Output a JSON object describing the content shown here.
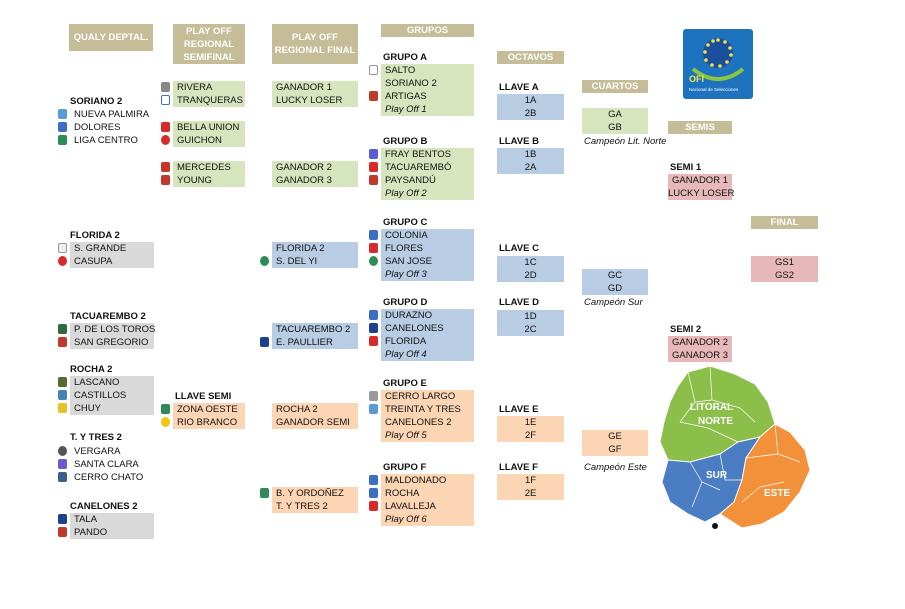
{
  "headers": {
    "qualy": "QUALY DEPTAL.",
    "playoff_semi": "PLAY OFF REGIONAL SEMIFINAL",
    "playoff_final": "PLAY OFF REGIONAL FINAL",
    "grupos": "GRUPOS",
    "octavos": "OCTAVOS",
    "cuartos": "CUARTOS",
    "semis": "SEMIS",
    "final": "FINAL"
  },
  "qualy": {
    "soriano": {
      "title": "SORIANO 2",
      "teams": [
        "NUEVA PALMIRA",
        "DOLORES",
        "LIGA CENTRO"
      ]
    },
    "florida": {
      "title": "FLORIDA 2",
      "teams": [
        "S. GRANDE",
        "CASUPA"
      ]
    },
    "tacuarembo": {
      "title": "TACUAREMBO 2",
      "teams": [
        "P. DE LOS TOROS",
        "SAN GREGORIO"
      ]
    },
    "rocha": {
      "title": "ROCHA 2",
      "teams": [
        "LASCANO",
        "CASTILLOS",
        "CHUY"
      ]
    },
    "tytres": {
      "title": "T. Y TRES 2",
      "teams": [
        "VERGARA",
        "SANTA CLARA",
        "CERRO CHATO"
      ]
    },
    "canelones": {
      "title": "CANELONES 2",
      "teams": [
        "TALA",
        "PANDO"
      ]
    }
  },
  "semi": {
    "m1": [
      "RIVERA",
      "TRANQUERAS"
    ],
    "m2": [
      "BELLA UNION",
      "GUICHON"
    ],
    "m3": [
      "MERCEDES",
      "YOUNG"
    ],
    "llave_title": "LLAVE SEMI",
    "m4": [
      "ZONA OESTE",
      "RIO BRANCO"
    ]
  },
  "final_regional": {
    "f1": [
      "GANADOR 1",
      "LUCKY LOSER"
    ],
    "f2": [
      "GANADOR 2",
      "GANADOR 3"
    ],
    "f3": [
      "FLORIDA 2",
      "S. DEL YI"
    ],
    "f4": [
      "TACUAREMBO 2",
      "E. PAULLIER"
    ],
    "f5": [
      "ROCHA 2",
      "GANADOR SEMI"
    ],
    "f6": [
      "B. Y ORDOÑEZ",
      "T. Y TRES 2"
    ]
  },
  "grupos": {
    "a": {
      "title": "GRUPO A",
      "teams": [
        "SALTO",
        "SORIANO 2",
        "ARTIGAS"
      ],
      "po": "Play Off 1"
    },
    "b": {
      "title": "GRUPO B",
      "teams": [
        "FRAY BENTOS",
        "TACUAREMBÓ",
        "PAYSANDÚ"
      ],
      "po": "Play Off 2"
    },
    "c": {
      "title": "GRUPO C",
      "teams": [
        "COLONIA",
        "FLORES",
        "SAN JOSE"
      ],
      "po": "Play Off 3"
    },
    "d": {
      "title": "GRUPO D",
      "teams": [
        "DURAZNO",
        "CANELONES",
        "FLORIDA"
      ],
      "po": "Play Off 4"
    },
    "e": {
      "title": "GRUPO E",
      "teams": [
        "CERRO LARGO",
        "TREINTA Y TRES",
        "CANELONES 2"
      ],
      "po": "Play Off 5"
    },
    "f": {
      "title": "GRUPO F",
      "teams": [
        "MALDONADO",
        "ROCHA",
        "LAVALLEJA"
      ],
      "po": "Play Off 6"
    }
  },
  "octavos": {
    "a": {
      "title": "LLAVE A",
      "items": [
        "1A",
        "2B"
      ]
    },
    "b": {
      "title": "LLAVE B",
      "items": [
        "1B",
        "2A"
      ]
    },
    "c": {
      "title": "LLAVE C",
      "items": [
        "1C",
        "2D"
      ]
    },
    "d": {
      "title": "LLAVE D",
      "items": [
        "1D",
        "2C"
      ]
    },
    "e": {
      "title": "LLAVE E",
      "items": [
        "1E",
        "2F"
      ]
    },
    "f": {
      "title": "LLAVE F",
      "items": [
        "1F",
        "2E"
      ]
    }
  },
  "cuartos": {
    "norte": {
      "items": [
        "GA",
        "GB"
      ],
      "label": "Campeón Lit. Norte"
    },
    "sur": {
      "items": [
        "GC",
        "GD"
      ],
      "label": "Campeón Sur"
    },
    "este": {
      "items": [
        "GE",
        "GF"
      ],
      "label": "Campeón Este"
    }
  },
  "semis": {
    "s1": {
      "title": "SEMI 1",
      "items": [
        "GANADOR 1",
        "LUCKY LOSER"
      ]
    },
    "s2": {
      "title": "SEMI 2",
      "items": [
        "GANADOR 2",
        "GANADOR 3"
      ]
    }
  },
  "final": {
    "items": [
      "GS1",
      "GS2"
    ]
  },
  "logo": {
    "text": "OFI",
    "sub": "Nacional de Selecciones"
  },
  "map": {
    "litoral": "LITORAL",
    "norte": "NORTE",
    "sur": "SUR",
    "este": "ESTE",
    "colors": {
      "green": "#8cbf4a",
      "blue": "#4a7dc1",
      "orange": "#f3913a"
    }
  }
}
